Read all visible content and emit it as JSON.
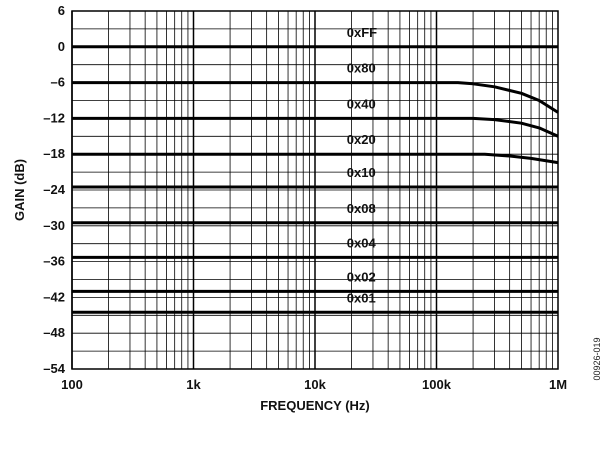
{
  "figure_code": "00926-019",
  "chart_data": {
    "type": "line",
    "xlabel": "FREQUENCY (Hz)",
    "ylabel": "GAIN (dB)",
    "xscale": "log",
    "xlim": [
      100,
      1000000
    ],
    "ylim": [
      -54,
      6
    ],
    "grid": true,
    "x_ticks": [
      {
        "value": 100,
        "label": "100"
      },
      {
        "value": 1000,
        "label": "1k"
      },
      {
        "value": 10000,
        "label": "10k"
      },
      {
        "value": 100000,
        "label": "100k"
      },
      {
        "value": 1000000,
        "label": "1M"
      }
    ],
    "y_ticks": [
      {
        "value": 6,
        "label": "6"
      },
      {
        "value": 0,
        "label": "0"
      },
      {
        "value": -6,
        "label": "–6"
      },
      {
        "value": -12,
        "label": "–12"
      },
      {
        "value": -18,
        "label": "–18"
      },
      {
        "value": -24,
        "label": "–24"
      },
      {
        "value": -30,
        "label": "–30"
      },
      {
        "value": -36,
        "label": "–36"
      },
      {
        "value": -42,
        "label": "–42"
      },
      {
        "value": -48,
        "label": "–48"
      },
      {
        "value": -54,
        "label": "–54"
      }
    ],
    "series": [
      {
        "name": "0xFF",
        "x": [
          100,
          1000000
        ],
        "y": [
          0,
          0
        ]
      },
      {
        "name": "0x80",
        "x": [
          100,
          150000,
          200000,
          300000,
          500000,
          700000,
          1000000
        ],
        "y": [
          -6,
          -6,
          -6.2,
          -6.7,
          -7.8,
          -9.0,
          -11.0
        ]
      },
      {
        "name": "0x40",
        "x": [
          100,
          200000,
          300000,
          500000,
          700000,
          1000000
        ],
        "y": [
          -12,
          -12,
          -12.2,
          -12.8,
          -13.6,
          -15.0
        ]
      },
      {
        "name": "0x20",
        "x": [
          100,
          250000,
          400000,
          600000,
          1000000
        ],
        "y": [
          -18,
          -18,
          -18.3,
          -18.7,
          -19.4
        ]
      },
      {
        "name": "0x10",
        "x": [
          100,
          1000000
        ],
        "y": [
          -23.5,
          -23.5
        ]
      },
      {
        "name": "0x08",
        "x": [
          100,
          1000000
        ],
        "y": [
          -29.5,
          -29.5
        ]
      },
      {
        "name": "0x04",
        "x": [
          100,
          1000000
        ],
        "y": [
          -35.3,
          -35.3
        ]
      },
      {
        "name": "0x02",
        "x": [
          100,
          1000000
        ],
        "y": [
          -41,
          -41
        ]
      },
      {
        "name": "0x01",
        "x": [
          100,
          1000000
        ],
        "y": [
          -44.5,
          -44.5
        ]
      }
    ]
  }
}
